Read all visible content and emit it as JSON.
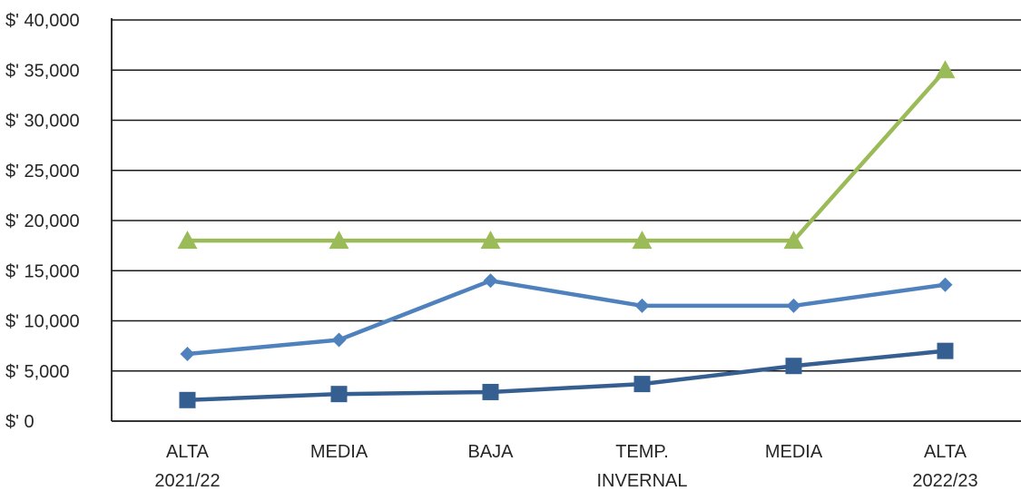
{
  "chart_data": {
    "type": "line",
    "title": "",
    "xlabel": "",
    "ylabel": "",
    "categories": [
      [
        "ALTA",
        "2021/22"
      ],
      [
        "MEDIA"
      ],
      [
        "BAJA"
      ],
      [
        "TEMP.",
        "INVERNAL"
      ],
      [
        "MEDIA"
      ],
      [
        "ALTA",
        "2022/23"
      ]
    ],
    "ylim": [
      0,
      40000
    ],
    "yticks": [
      0,
      5000,
      10000,
      15000,
      20000,
      25000,
      30000,
      35000,
      40000
    ],
    "ytick_labels": [
      "$' 0",
      "$' 5,000",
      "$' 10,000",
      "$' 15,000",
      "$' 20,000",
      "$' 25,000",
      "$' 30,000",
      "$' 35,000",
      "$' 40,000"
    ],
    "grid": true,
    "legend": "none",
    "series": [
      {
        "marker": "triangle",
        "color": "#9BBB59",
        "values": [
          18000,
          18000,
          18000,
          18000,
          18000,
          35000
        ]
      },
      {
        "marker": "diamond",
        "color": "#4F81BD",
        "values": [
          6700,
          8100,
          14000,
          11500,
          11500,
          13600
        ]
      },
      {
        "marker": "square",
        "color": "#365F91",
        "values": [
          2100,
          2700,
          2900,
          3700,
          5500,
          7000
        ]
      }
    ]
  }
}
